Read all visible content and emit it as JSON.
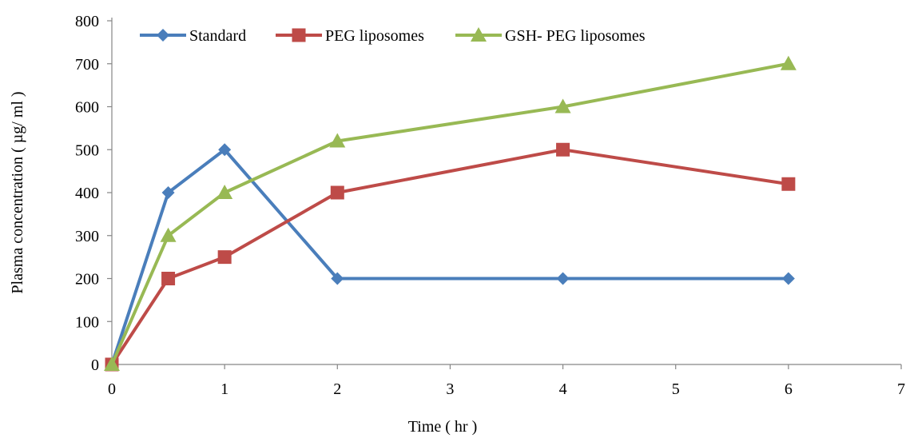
{
  "chart_data": {
    "type": "line",
    "title": "",
    "xlabel": "Time ( hr )",
    "ylabel": "Plasma concentration ( µg/ ml )",
    "xlim": [
      0,
      7
    ],
    "ylim": [
      0,
      800
    ],
    "x_ticks": [
      0,
      1,
      2,
      3,
      4,
      5,
      6,
      7
    ],
    "y_ticks": [
      0,
      100,
      200,
      300,
      400,
      500,
      600,
      700,
      800
    ],
    "grid": false,
    "legend_position": "top",
    "series": [
      {
        "name": "Standard",
        "color": "#4a7ebb",
        "marker": "diamond",
        "x": [
          0,
          0.5,
          1,
          2,
          4,
          6
        ],
        "values": [
          0,
          400,
          500,
          200,
          200,
          200
        ]
      },
      {
        "name": "PEG liposomes",
        "color": "#be4b48",
        "marker": "square",
        "x": [
          0,
          0.5,
          1,
          2,
          4,
          6
        ],
        "values": [
          0,
          200,
          250,
          400,
          500,
          420
        ]
      },
      {
        "name": "GSH- PEG liposomes",
        "color": "#98b954",
        "marker": "triangle",
        "x": [
          0,
          0.5,
          1,
          2,
          4,
          6
        ],
        "values": [
          0,
          300,
          400,
          520,
          600,
          700
        ]
      }
    ]
  }
}
